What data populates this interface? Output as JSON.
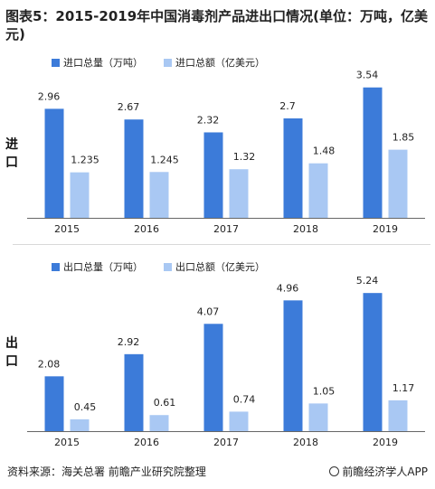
{
  "title": "图表5：2015-2019年中国消毒剂产品进出口情况(单位：万吨，亿美元)",
  "colors": {
    "volume": "#3c7bd9",
    "value": "#a9c8f3",
    "axis": "#666666"
  },
  "chart_data": [
    {
      "type": "bar",
      "side_label": "进口",
      "categories": [
        "2015",
        "2016",
        "2017",
        "2018",
        "2019"
      ],
      "series": [
        {
          "name": "进口总量（万吨）",
          "values": [
            2.96,
            2.67,
            2.32,
            2.7,
            3.54
          ],
          "labels": [
            "2.96",
            "2.67",
            "2.32",
            "2.7",
            "3.54"
          ]
        },
        {
          "name": "进口总额（亿美元）",
          "values": [
            1.235,
            1.245,
            1.32,
            1.48,
            1.85
          ],
          "labels": [
            "1.235",
            "1.245",
            "1.32",
            "1.48",
            "1.85"
          ]
        }
      ],
      "ylim": [
        0,
        4
      ]
    },
    {
      "type": "bar",
      "side_label": "出口",
      "categories": [
        "2015",
        "2016",
        "2017",
        "2018",
        "2019"
      ],
      "series": [
        {
          "name": "出口总量（万吨）",
          "values": [
            2.08,
            2.92,
            4.07,
            4.96,
            5.24
          ],
          "labels": [
            "2.08",
            "2.92",
            "4.07",
            "4.96",
            "5.24"
          ]
        },
        {
          "name": "出口总额（亿美元）",
          "values": [
            0.45,
            0.61,
            0.74,
            1.05,
            1.17
          ],
          "labels": [
            "0.45",
            "0.61",
            "0.74",
            "1.05",
            "1.17"
          ]
        }
      ],
      "ylim": [
        0,
        6
      ]
    }
  ],
  "footer": {
    "source": "资料来源：海关总署 前瞻产业研究院整理",
    "brand": "前瞻经济学人APP"
  }
}
